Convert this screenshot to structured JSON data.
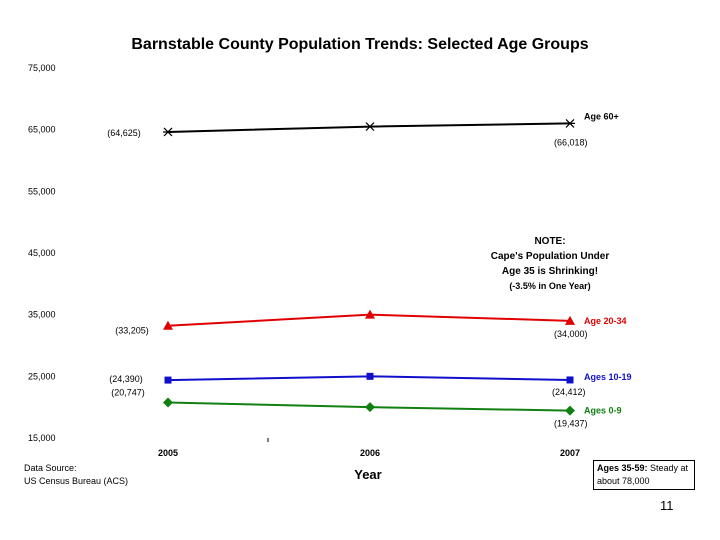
{
  "chart_data": {
    "type": "line",
    "title": "Barnstable County Population Trends: Selected Age Groups",
    "xlabel": "Year",
    "ylabel": "",
    "categories": [
      "2005",
      "2006",
      "2007"
    ],
    "ylim": [
      15000,
      75000
    ],
    "y_ticks": [
      "75,000",
      "65,000",
      "55,000",
      "45,000",
      "35,000",
      "25,000",
      "15,000"
    ],
    "y_tick_values": [
      75000,
      65000,
      55000,
      45000,
      35000,
      25000,
      15000
    ],
    "series": [
      {
        "name": "Age 60+",
        "color": "#000000",
        "marker": "star",
        "values": [
          64625,
          65500,
          66018
        ],
        "labels": [
          "(64,625)",
          "",
          "(66,018)"
        ]
      },
      {
        "name": "Age 20-34",
        "color": "#e00000",
        "marker": "triangle",
        "values": [
          33205,
          35000,
          34000
        ],
        "labels": [
          "(33,205)",
          "",
          "(34,000)"
        ]
      },
      {
        "name": "Ages 10-19",
        "color": "#1010cc",
        "marker": "square",
        "values": [
          24390,
          25000,
          24412
        ],
        "labels": [
          "(24,390)",
          "",
          "(24,412)"
        ]
      },
      {
        "name": "Ages 0-9",
        "color": "#108010",
        "marker": "diamond",
        "values": [
          20747,
          20000,
          19437
        ],
        "labels": [
          "(20,747)",
          "",
          "(19,437)"
        ]
      }
    ]
  },
  "note": {
    "heading": "NOTE:",
    "line1": "Cape's Population Under",
    "line2": "Age 35 is Shrinking!",
    "line3": "(-3.5% in One Year)"
  },
  "source": {
    "line1": "Data Source:",
    "line2": "US Census Bureau (ACS)"
  },
  "steady": {
    "bold": "Ages 35-59:",
    "rest": " Steady at about 78,000"
  },
  "page_number": "11"
}
